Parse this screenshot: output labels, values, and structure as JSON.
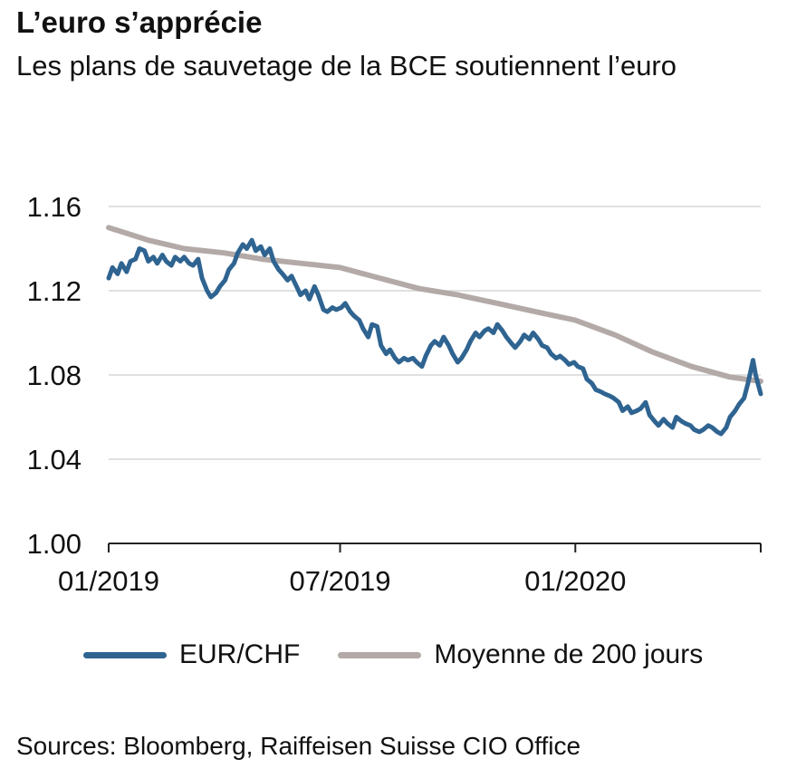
{
  "header": {
    "title": "L’euro s’apprécie",
    "subtitle": "Les plans de sauvetage de la BCE soutiennent l’euro"
  },
  "footer": {
    "source": "Sources: Bloomberg, Raiffeisen Suisse CIO Office"
  },
  "colors": {
    "eurchf": "#2f6491",
    "ma200": "#b3aaa8",
    "grid": "#d6d6d6",
    "axis": "#222222"
  },
  "chart_data": {
    "type": "line",
    "title": "L’euro s’apprécie",
    "subtitle": "Les plans de sauvetage de la BCE soutiennent l’euro",
    "xlabel": "",
    "ylabel": "",
    "ylim": [
      1.0,
      1.16
    ],
    "xlim": [
      "2019-01-01",
      "2020-05-25"
    ],
    "yticks": [
      "1.00",
      "1.04",
      "1.08",
      "1.12",
      "1.16"
    ],
    "xticks": [
      {
        "date": "2019-01-01",
        "label": "01/2019"
      },
      {
        "date": "2019-07-01",
        "label": "07/2019"
      },
      {
        "date": "2020-01-01",
        "label": "01/2020"
      }
    ],
    "grid": true,
    "legend_position": "bottom",
    "series": [
      {
        "name": "EUR/CHF",
        "color": "#2f6491",
        "points": [
          [
            "2019-01-01",
            1.126
          ],
          [
            "2019-01-04",
            1.131
          ],
          [
            "2019-01-08",
            1.128
          ],
          [
            "2019-01-11",
            1.133
          ],
          [
            "2019-01-15",
            1.129
          ],
          [
            "2019-01-18",
            1.134
          ],
          [
            "2019-01-22",
            1.135
          ],
          [
            "2019-01-25",
            1.14
          ],
          [
            "2019-01-29",
            1.139
          ],
          [
            "2019-02-01",
            1.134
          ],
          [
            "2019-02-05",
            1.136
          ],
          [
            "2019-02-08",
            1.133
          ],
          [
            "2019-02-12",
            1.137
          ],
          [
            "2019-02-15",
            1.134
          ],
          [
            "2019-02-19",
            1.132
          ],
          [
            "2019-02-22",
            1.136
          ],
          [
            "2019-02-26",
            1.134
          ],
          [
            "2019-03-01",
            1.136
          ],
          [
            "2019-03-05",
            1.133
          ],
          [
            "2019-03-08",
            1.132
          ],
          [
            "2019-03-12",
            1.135
          ],
          [
            "2019-03-15",
            1.126
          ],
          [
            "2019-03-19",
            1.12
          ],
          [
            "2019-03-22",
            1.117
          ],
          [
            "2019-03-26",
            1.119
          ],
          [
            "2019-03-29",
            1.122
          ],
          [
            "2019-04-02",
            1.125
          ],
          [
            "2019-04-05",
            1.13
          ],
          [
            "2019-04-09",
            1.133
          ],
          [
            "2019-04-12",
            1.138
          ],
          [
            "2019-04-16",
            1.142
          ],
          [
            "2019-04-19",
            1.14
          ],
          [
            "2019-04-23",
            1.144
          ],
          [
            "2019-04-26",
            1.139
          ],
          [
            "2019-04-30",
            1.141
          ],
          [
            "2019-05-03",
            1.137
          ],
          [
            "2019-05-07",
            1.14
          ],
          [
            "2019-05-10",
            1.134
          ],
          [
            "2019-05-14",
            1.13
          ],
          [
            "2019-05-17",
            1.128
          ],
          [
            "2019-05-21",
            1.125
          ],
          [
            "2019-05-24",
            1.127
          ],
          [
            "2019-05-28",
            1.122
          ],
          [
            "2019-05-31",
            1.118
          ],
          [
            "2019-06-04",
            1.12
          ],
          [
            "2019-06-07",
            1.116
          ],
          [
            "2019-06-11",
            1.122
          ],
          [
            "2019-06-14",
            1.118
          ],
          [
            "2019-06-18",
            1.111
          ],
          [
            "2019-06-21",
            1.11
          ],
          [
            "2019-06-25",
            1.112
          ],
          [
            "2019-06-28",
            1.111
          ],
          [
            "2019-07-02",
            1.112
          ],
          [
            "2019-07-05",
            1.114
          ],
          [
            "2019-07-09",
            1.11
          ],
          [
            "2019-07-12",
            1.108
          ],
          [
            "2019-07-16",
            1.106
          ],
          [
            "2019-07-19",
            1.102
          ],
          [
            "2019-07-23",
            1.098
          ],
          [
            "2019-07-26",
            1.104
          ],
          [
            "2019-07-30",
            1.103
          ],
          [
            "2019-08-02",
            1.094
          ],
          [
            "2019-08-06",
            1.09
          ],
          [
            "2019-08-09",
            1.092
          ],
          [
            "2019-08-13",
            1.088
          ],
          [
            "2019-08-16",
            1.086
          ],
          [
            "2019-08-20",
            1.088
          ],
          [
            "2019-08-23",
            1.087
          ],
          [
            "2019-08-27",
            1.088
          ],
          [
            "2019-08-30",
            1.086
          ],
          [
            "2019-09-03",
            1.084
          ],
          [
            "2019-09-06",
            1.089
          ],
          [
            "2019-09-10",
            1.094
          ],
          [
            "2019-09-13",
            1.096
          ],
          [
            "2019-09-17",
            1.094
          ],
          [
            "2019-09-20",
            1.098
          ],
          [
            "2019-09-24",
            1.094
          ],
          [
            "2019-09-27",
            1.09
          ],
          [
            "2019-10-01",
            1.086
          ],
          [
            "2019-10-04",
            1.088
          ],
          [
            "2019-10-08",
            1.092
          ],
          [
            "2019-10-11",
            1.096
          ],
          [
            "2019-10-15",
            1.1
          ],
          [
            "2019-10-18",
            1.098
          ],
          [
            "2019-10-22",
            1.101
          ],
          [
            "2019-10-25",
            1.102
          ],
          [
            "2019-10-29",
            1.1
          ],
          [
            "2019-11-01",
            1.104
          ],
          [
            "2019-11-05",
            1.101
          ],
          [
            "2019-11-08",
            1.098
          ],
          [
            "2019-11-12",
            1.095
          ],
          [
            "2019-11-15",
            1.093
          ],
          [
            "2019-11-19",
            1.096
          ],
          [
            "2019-11-22",
            1.099
          ],
          [
            "2019-11-26",
            1.097
          ],
          [
            "2019-11-29",
            1.1
          ],
          [
            "2019-12-03",
            1.097
          ],
          [
            "2019-12-06",
            1.094
          ],
          [
            "2019-12-10",
            1.093
          ],
          [
            "2019-12-13",
            1.09
          ],
          [
            "2019-12-17",
            1.088
          ],
          [
            "2019-12-20",
            1.089
          ],
          [
            "2019-12-24",
            1.087
          ],
          [
            "2019-12-27",
            1.085
          ],
          [
            "2019-12-31",
            1.086
          ],
          [
            "2020-01-03",
            1.084
          ],
          [
            "2020-01-07",
            1.083
          ],
          [
            "2020-01-10",
            1.078
          ],
          [
            "2020-01-14",
            1.076
          ],
          [
            "2020-01-17",
            1.073
          ],
          [
            "2020-01-21",
            1.072
          ],
          [
            "2020-01-24",
            1.071
          ],
          [
            "2020-01-28",
            1.07
          ],
          [
            "2020-01-31",
            1.069
          ],
          [
            "2020-02-04",
            1.067
          ],
          [
            "2020-02-07",
            1.063
          ],
          [
            "2020-02-11",
            1.065
          ],
          [
            "2020-02-14",
            1.062
          ],
          [
            "2020-02-18",
            1.063
          ],
          [
            "2020-02-21",
            1.064
          ],
          [
            "2020-02-25",
            1.067
          ],
          [
            "2020-02-28",
            1.061
          ],
          [
            "2020-03-03",
            1.058
          ],
          [
            "2020-03-06",
            1.056
          ],
          [
            "2020-03-10",
            1.059
          ],
          [
            "2020-03-13",
            1.057
          ],
          [
            "2020-03-17",
            1.055
          ],
          [
            "2020-03-20",
            1.06
          ],
          [
            "2020-03-24",
            1.058
          ],
          [
            "2020-03-27",
            1.057
          ],
          [
            "2020-03-31",
            1.056
          ],
          [
            "2020-04-03",
            1.054
          ],
          [
            "2020-04-07",
            1.053
          ],
          [
            "2020-04-10",
            1.054
          ],
          [
            "2020-04-14",
            1.056
          ],
          [
            "2020-04-17",
            1.055
          ],
          [
            "2020-04-21",
            1.053
          ],
          [
            "2020-04-24",
            1.052
          ],
          [
            "2020-04-28",
            1.055
          ],
          [
            "2020-05-01",
            1.06
          ],
          [
            "2020-05-05",
            1.063
          ],
          [
            "2020-05-08",
            1.066
          ],
          [
            "2020-05-12",
            1.069
          ],
          [
            "2020-05-15",
            1.076
          ],
          [
            "2020-05-19",
            1.087
          ],
          [
            "2020-05-21",
            1.08
          ],
          [
            "2020-05-25",
            1.071
          ]
        ]
      },
      {
        "name": "Moyenne de 200 jours",
        "color": "#b3aaa8",
        "points": [
          [
            "2019-01-01",
            1.15
          ],
          [
            "2019-02-01",
            1.144
          ],
          [
            "2019-03-01",
            1.14
          ],
          [
            "2019-04-01",
            1.138
          ],
          [
            "2019-05-01",
            1.135
          ],
          [
            "2019-06-01",
            1.133
          ],
          [
            "2019-07-01",
            1.131
          ],
          [
            "2019-08-01",
            1.126
          ],
          [
            "2019-09-01",
            1.121
          ],
          [
            "2019-10-01",
            1.118
          ],
          [
            "2019-11-01",
            1.114
          ],
          [
            "2019-12-01",
            1.11
          ],
          [
            "2020-01-01",
            1.106
          ],
          [
            "2020-02-01",
            1.099
          ],
          [
            "2020-03-01",
            1.091
          ],
          [
            "2020-04-01",
            1.084
          ],
          [
            "2020-05-01",
            1.079
          ],
          [
            "2020-05-25",
            1.077
          ]
        ]
      }
    ]
  }
}
